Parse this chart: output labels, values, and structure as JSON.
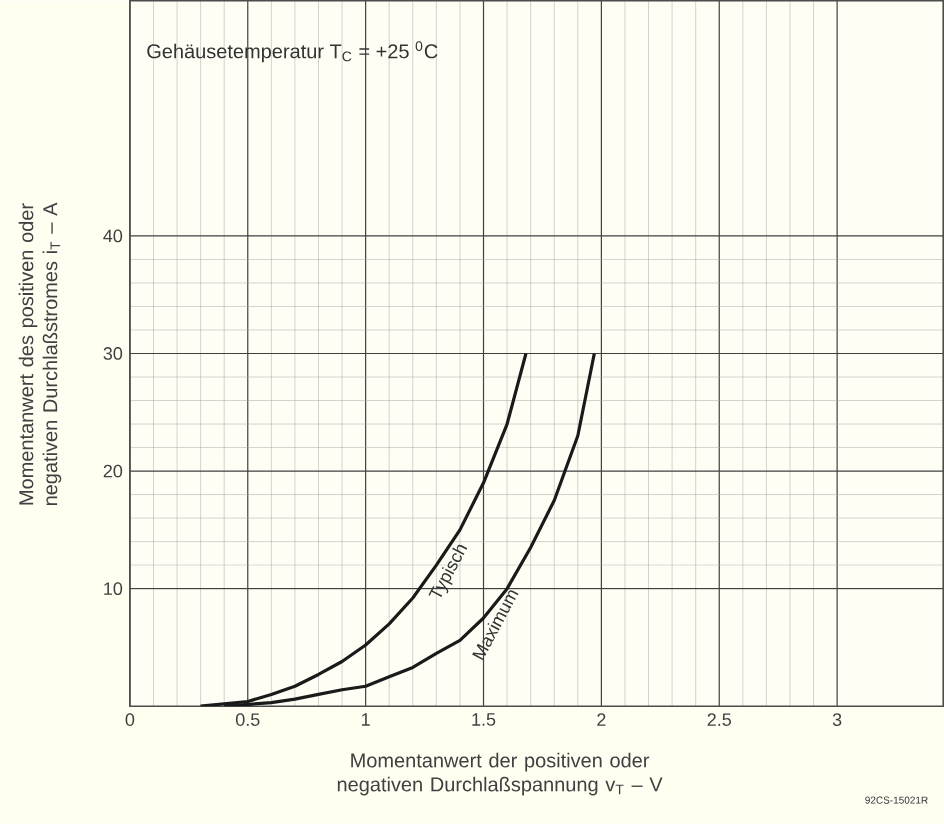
{
  "chart_data": {
    "type": "line",
    "title": "Gehäusetemperatur T$_{C}$ = +25 $^{0}$C",
    "xlabel": "Momentanwert der positiven oder negativen Durchlaßspannung v$_{T}$ – V",
    "ylabel": "Momentanwert des positiven oder negativen Durchlaßstromes i$_{T}$ – A",
    "annotations": [
      "92CS-15021R"
    ],
    "xlim": [
      0,
      3.45
    ],
    "ylim": [
      0,
      60
    ],
    "xticks": [
      0,
      0.5,
      1,
      1.5,
      2,
      2.5,
      3
    ],
    "yticks": [
      10,
      20,
      30,
      40
    ],
    "grid": true,
    "legend": false,
    "marker": "none",
    "line_style": "solid",
    "series": [
      {
        "name": "Typisch",
        "color": "#1a1a1a",
        "x": [
          0.3,
          0.5,
          0.6,
          0.7,
          0.8,
          0.9,
          1.0,
          1.1,
          1.2,
          1.3,
          1.4,
          1.5,
          1.6,
          1.68
        ],
        "values": [
          0,
          0.4,
          1,
          1.7,
          2.7,
          3.8,
          5.2,
          7,
          9.2,
          12,
          15,
          19,
          24,
          30
        ]
      },
      {
        "name": "Maximum",
        "color": "#1a1a1a",
        "x": [
          0.4,
          0.6,
          0.7,
          0.8,
          0.9,
          1.0,
          1.1,
          1.2,
          1.3,
          1.4,
          1.5,
          1.6,
          1.7,
          1.8,
          1.9,
          1.97
        ],
        "values": [
          0,
          0.3,
          0.6,
          1,
          1.4,
          1.7,
          2.5,
          3.3,
          4.5,
          5.6,
          7.5,
          10,
          13.5,
          17.5,
          23,
          30
        ]
      }
    ]
  }
}
